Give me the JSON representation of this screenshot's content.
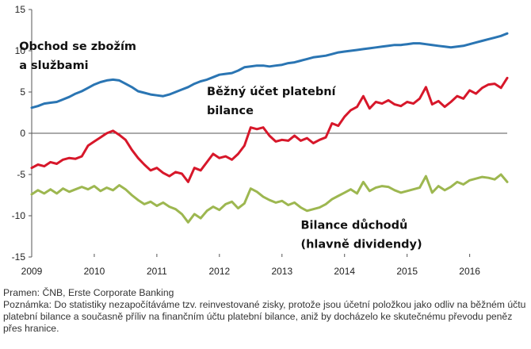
{
  "chart_data": {
    "type": "line",
    "title": "",
    "xlabel": "",
    "ylabel": "",
    "ylim": [
      -15,
      15
    ],
    "yticks": [
      -15,
      -10,
      -5,
      0,
      5,
      10,
      15
    ],
    "xlim": [
      2009.0,
      2016.6
    ],
    "xticks": [
      {
        "value": 2009,
        "label": "2009"
      },
      {
        "value": 2010,
        "label": "2010"
      },
      {
        "value": 2011,
        "label": "2011"
      },
      {
        "value": 2012,
        "label": "2012"
      },
      {
        "value": 2013,
        "label": "2013"
      },
      {
        "value": 2014,
        "label": "2014"
      },
      {
        "value": 2015,
        "label": "2015"
      },
      {
        "value": 2016,
        "label": "2016"
      }
    ],
    "grid": false,
    "legend": "none",
    "series": [
      {
        "name": "Obchod se zbožím a službami",
        "label_lines": [
          "Obchod se zbožím",
          "a službami"
        ],
        "color": "#2a75b3",
        "x": [
          2009.0,
          2009.1,
          2009.2,
          2009.3,
          2009.4,
          2009.5,
          2009.6,
          2009.7,
          2009.8,
          2009.9,
          2010.0,
          2010.1,
          2010.2,
          2010.3,
          2010.4,
          2010.5,
          2010.6,
          2010.7,
          2010.8,
          2010.9,
          2011.0,
          2011.1,
          2011.2,
          2011.3,
          2011.4,
          2011.5,
          2011.6,
          2011.7,
          2011.8,
          2011.9,
          2012.0,
          2012.1,
          2012.2,
          2012.3,
          2012.4,
          2012.5,
          2012.6,
          2012.7,
          2012.8,
          2012.9,
          2013.0,
          2013.1,
          2013.2,
          2013.3,
          2013.4,
          2013.5,
          2013.6,
          2013.7,
          2013.8,
          2013.9,
          2014.0,
          2014.1,
          2014.2,
          2014.3,
          2014.4,
          2014.5,
          2014.6,
          2014.7,
          2014.8,
          2014.9,
          2015.0,
          2015.1,
          2015.2,
          2015.3,
          2015.4,
          2015.5,
          2015.6,
          2015.7,
          2015.8,
          2015.9,
          2016.0,
          2016.1,
          2016.2,
          2016.3,
          2016.4,
          2016.5,
          2016.6
        ],
        "values": [
          3.1,
          3.3,
          3.6,
          3.7,
          3.8,
          4.1,
          4.4,
          4.8,
          5.1,
          5.5,
          5.9,
          6.2,
          6.4,
          6.5,
          6.4,
          6.0,
          5.6,
          5.1,
          4.9,
          4.7,
          4.6,
          4.5,
          4.7,
          5.0,
          5.3,
          5.6,
          6.0,
          6.3,
          6.5,
          6.8,
          7.1,
          7.2,
          7.3,
          7.6,
          8.0,
          8.1,
          8.2,
          8.2,
          8.1,
          8.2,
          8.3,
          8.5,
          8.6,
          8.8,
          9.0,
          9.2,
          9.3,
          9.4,
          9.6,
          9.8,
          9.9,
          10.0,
          10.1,
          10.2,
          10.3,
          10.4,
          10.5,
          10.6,
          10.7,
          10.7,
          10.8,
          10.9,
          10.9,
          10.8,
          10.7,
          10.6,
          10.5,
          10.4,
          10.5,
          10.6,
          10.8,
          11.0,
          11.2,
          11.4,
          11.6,
          11.8,
          12.1
        ]
      },
      {
        "name": "Běžný účet platební bilance",
        "label_lines": [
          "Běžný účet platební",
          "bilance"
        ],
        "color": "#d7172a",
        "x": [
          2009.0,
          2009.1,
          2009.2,
          2009.3,
          2009.4,
          2009.5,
          2009.6,
          2009.7,
          2009.8,
          2009.9,
          2010.0,
          2010.1,
          2010.2,
          2010.3,
          2010.4,
          2010.5,
          2010.6,
          2010.7,
          2010.8,
          2010.9,
          2011.0,
          2011.1,
          2011.2,
          2011.3,
          2011.4,
          2011.5,
          2011.6,
          2011.7,
          2011.8,
          2011.9,
          2012.0,
          2012.1,
          2012.2,
          2012.3,
          2012.4,
          2012.5,
          2012.6,
          2012.7,
          2012.8,
          2012.9,
          2013.0,
          2013.1,
          2013.2,
          2013.3,
          2013.4,
          2013.5,
          2013.6,
          2013.7,
          2013.8,
          2013.9,
          2014.0,
          2014.1,
          2014.2,
          2014.3,
          2014.4,
          2014.5,
          2014.6,
          2014.7,
          2014.8,
          2014.9,
          2015.0,
          2015.1,
          2015.2,
          2015.3,
          2015.4,
          2015.5,
          2015.6,
          2015.7,
          2015.8,
          2015.9,
          2016.0,
          2016.1,
          2016.2,
          2016.3,
          2016.4,
          2016.5,
          2016.6
        ],
        "values": [
          -4.2,
          -3.8,
          -4.0,
          -3.5,
          -3.7,
          -3.2,
          -3.0,
          -3.1,
          -2.8,
          -1.5,
          -1.0,
          -0.5,
          0.0,
          0.3,
          -0.2,
          -0.8,
          -2.0,
          -3.0,
          -3.8,
          -4.5,
          -4.2,
          -4.8,
          -5.2,
          -4.7,
          -4.9,
          -5.9,
          -4.2,
          -4.5,
          -3.5,
          -2.5,
          -3.0,
          -2.8,
          -3.2,
          -2.5,
          -1.5,
          0.7,
          0.5,
          0.7,
          -0.3,
          -1.0,
          -0.8,
          -0.9,
          -0.3,
          -0.9,
          -0.6,
          -1.2,
          -0.8,
          -0.5,
          1.2,
          0.9,
          2.0,
          2.8,
          3.2,
          4.5,
          3.0,
          3.8,
          3.6,
          4.0,
          3.5,
          3.3,
          3.8,
          3.6,
          4.2,
          5.6,
          3.5,
          3.9,
          3.2,
          3.8,
          4.5,
          4.2,
          5.2,
          4.8,
          5.5,
          5.9,
          6.0,
          5.5,
          6.7
        ]
      },
      {
        "name": "Bilance důchodů (hlavně dividendy)",
        "label_lines": [
          "Bilance důchodů",
          "(hlavně dividendy)"
        ],
        "color": "#9db750",
        "x": [
          2009.0,
          2009.1,
          2009.2,
          2009.3,
          2009.4,
          2009.5,
          2009.6,
          2009.7,
          2009.8,
          2009.9,
          2010.0,
          2010.1,
          2010.2,
          2010.3,
          2010.4,
          2010.5,
          2010.6,
          2010.7,
          2010.8,
          2010.9,
          2011.0,
          2011.1,
          2011.2,
          2011.3,
          2011.4,
          2011.5,
          2011.6,
          2011.7,
          2011.8,
          2011.9,
          2012.0,
          2012.1,
          2012.2,
          2012.3,
          2012.4,
          2012.5,
          2012.6,
          2012.7,
          2012.8,
          2012.9,
          2013.0,
          2013.1,
          2013.2,
          2013.3,
          2013.4,
          2013.5,
          2013.6,
          2013.7,
          2013.8,
          2013.9,
          2014.0,
          2014.1,
          2014.2,
          2014.3,
          2014.4,
          2014.5,
          2014.6,
          2014.7,
          2014.8,
          2014.9,
          2015.0,
          2015.1,
          2015.2,
          2015.3,
          2015.4,
          2015.5,
          2015.6,
          2015.7,
          2015.8,
          2015.9,
          2016.0,
          2016.1,
          2016.2,
          2016.3,
          2016.4,
          2016.5,
          2016.6
        ],
        "values": [
          -7.4,
          -6.9,
          -7.3,
          -6.8,
          -7.3,
          -6.7,
          -7.1,
          -6.8,
          -6.5,
          -6.8,
          -6.4,
          -7.0,
          -6.6,
          -6.9,
          -6.3,
          -6.8,
          -7.5,
          -8.1,
          -8.6,
          -8.3,
          -8.8,
          -8.4,
          -8.9,
          -9.2,
          -9.8,
          -10.8,
          -9.8,
          -10.3,
          -9.4,
          -8.9,
          -9.3,
          -8.6,
          -8.3,
          -9.1,
          -8.5,
          -6.7,
          -7.1,
          -7.7,
          -8.1,
          -8.4,
          -8.2,
          -8.7,
          -8.4,
          -9.0,
          -9.4,
          -9.2,
          -9.0,
          -8.6,
          -8.0,
          -7.6,
          -7.2,
          -6.8,
          -7.3,
          -5.9,
          -7.0,
          -6.6,
          -6.4,
          -6.5,
          -6.9,
          -7.2,
          -7.0,
          -6.8,
          -6.6,
          -5.2,
          -7.2,
          -6.4,
          -6.9,
          -6.5,
          -5.9,
          -6.2,
          -5.7,
          -5.5,
          -5.3,
          -5.4,
          -5.6,
          -5.0,
          -5.9
        ]
      }
    ]
  },
  "notes": {
    "source": "Pramen: ČNB, Erste Corporate Banking",
    "remark": "Poznámka: Do statistiky nezapočítáváme tzv. reinvestované zisky, protože jsou účetní položkou jako odliv na běžném účtu platební bilance a současně příliv na finančním účtu platební bilance, aniž by docházelo ke skutečnému převodu peněz přes hranice."
  }
}
